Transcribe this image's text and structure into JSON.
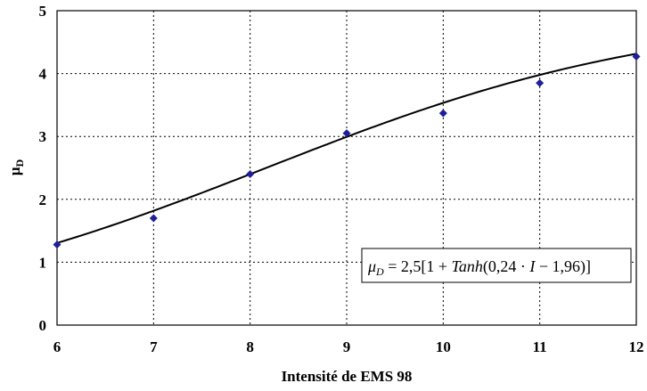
{
  "chart_data": {
    "type": "scatter",
    "xlabel": "Intensité de EMS 98",
    "ylabel_main": "μ",
    "ylabel_sub": "D",
    "xlim": [
      6,
      12
    ],
    "ylim": [
      0,
      5
    ],
    "x_ticks": [
      "6",
      "7",
      "8",
      "9",
      "10",
      "11",
      "12"
    ],
    "y_ticks": [
      "0",
      "1",
      "2",
      "3",
      "4",
      "5"
    ],
    "grid": true,
    "series": [
      {
        "marker": "diamond",
        "color": "#1f1f99",
        "x": [
          6,
          7,
          8,
          9,
          10,
          11,
          12
        ],
        "y": [
          1.28,
          1.7,
          2.4,
          3.05,
          3.37,
          3.85,
          4.27
        ]
      }
    ],
    "fit_curve": {
      "color": "#000000",
      "coef_a": 2.5,
      "coef_b": 0.24,
      "coef_c": 1.96
    },
    "annotation": {
      "mu": "μ",
      "sub": "D",
      "equals": " = 2,5[1 + ",
      "func": "Tanh",
      "paren_open": "(0,24 · ",
      "var": "I",
      "rest": " − 1,96)]",
      "position": "lower-right"
    }
  }
}
